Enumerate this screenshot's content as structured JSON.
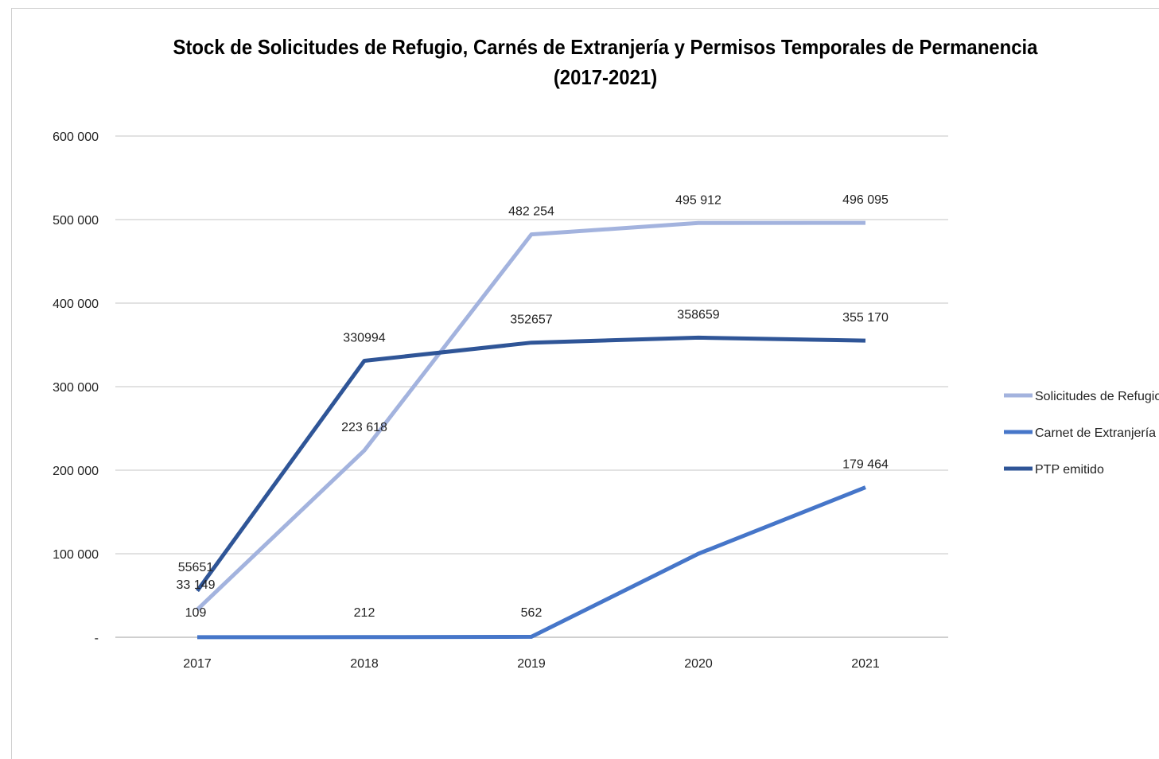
{
  "chart_data": {
    "type": "line",
    "title_line1": "Stock de Solicitudes de Refugio, Carnés de Extranjería y Permisos Temporales de Permanencia",
    "title_line2": "(2017-2021)",
    "categories": [
      "2017",
      "2018",
      "2019",
      "2020",
      "2021"
    ],
    "ylim": [
      0,
      600000
    ],
    "yticks": [
      0,
      100000,
      200000,
      300000,
      400000,
      500000,
      600000
    ],
    "ytick_labels": [
      "-",
      "100 000",
      "200 000",
      "300 000",
      "400 000",
      "500 000",
      "600 000"
    ],
    "grid": true,
    "legend_position": "right",
    "series": [
      {
        "name": "Solicitudes de Refugio",
        "color": "#a3b3de",
        "values": [
          33149,
          223618,
          482254,
          495912,
          496095
        ],
        "labels": [
          "33 149",
          "223 618",
          "482 254",
          "495 912",
          "496 095"
        ]
      },
      {
        "name": "Carnet de Extranjería",
        "color": "#4676c9",
        "values": [
          109,
          212,
          562,
          100000,
          179464
        ],
        "labels": [
          "109",
          "212",
          "562",
          "",
          "179 464"
        ]
      },
      {
        "name": "PTP emitido",
        "color": "#2f5597",
        "values": [
          55651,
          330994,
          352657,
          358659,
          355170
        ],
        "labels": [
          "55651",
          "330994",
          "352657",
          "358659",
          "355 170"
        ]
      }
    ]
  }
}
